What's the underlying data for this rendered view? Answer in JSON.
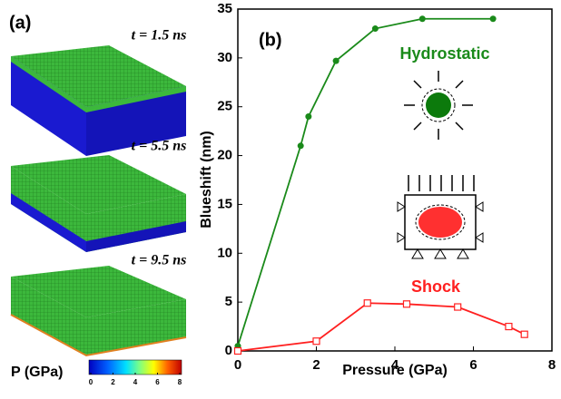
{
  "panel_a": {
    "label": "(a)",
    "frames": [
      "t = 1.5 ns",
      "t = 5.5 ns",
      "t = 9.5 ns"
    ],
    "colorbar": {
      "label": "P (GPa)",
      "ticks": [
        0,
        2,
        4,
        6,
        8
      ]
    }
  },
  "chart_data": {
    "type": "line",
    "panel_label": "(b)",
    "xlabel": "Pressure (GPa)",
    "ylabel": "Blueshift (nm)",
    "xlim": [
      0,
      8
    ],
    "xticks": [
      0,
      2,
      4,
      6,
      8
    ],
    "ylim": [
      0,
      35
    ],
    "yticks": [
      0,
      5,
      10,
      15,
      20,
      25,
      30,
      35
    ],
    "series": [
      {
        "name": "Hydrostatic",
        "color": "#1a8a1a",
        "marker": "circle",
        "x": [
          0,
          1.6,
          1.8,
          2.5,
          3.5,
          4.7,
          6.5
        ],
        "values": [
          0.5,
          21,
          24,
          29.7,
          33,
          34,
          34
        ]
      },
      {
        "name": "Shock",
        "color": "#ff2020",
        "marker": "square",
        "x": [
          0,
          2,
          3.3,
          4.3,
          5.6,
          6.9,
          7.3
        ],
        "values": [
          0,
          1,
          4.9,
          4.8,
          4.5,
          2.5,
          1.7
        ]
      }
    ]
  }
}
